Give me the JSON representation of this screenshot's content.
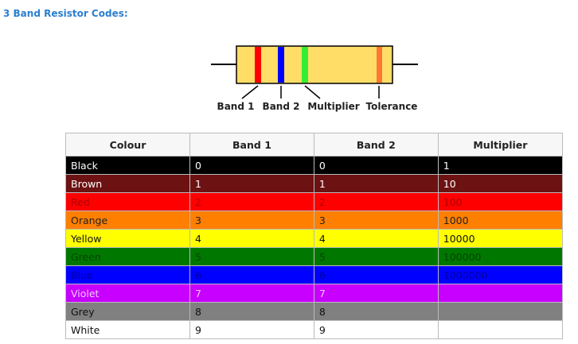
{
  "title": "3 Band Resistor Codes:",
  "diagram": {
    "labels": [
      "Band 1",
      "Band 2",
      "Multiplier",
      "Tolerance"
    ]
  },
  "table": {
    "headers": [
      "Colour",
      "Band 1",
      "Band 2",
      "Multiplier"
    ],
    "rows": [
      [
        "Black",
        "0",
        "0",
        "1"
      ],
      [
        "Brown",
        "1",
        "1",
        "10"
      ],
      [
        "Red",
        "2",
        "2",
        "100"
      ],
      [
        "Orange",
        "3",
        "3",
        "1000"
      ],
      [
        "Yellow",
        "4",
        "4",
        "10000"
      ],
      [
        "Green",
        "5",
        "5",
        "100000"
      ],
      [
        "Blue",
        "6",
        "6",
        "1000000"
      ],
      [
        "Violet",
        "7",
        "7"
      ],
      [
        "Grey",
        "8",
        "8"
      ],
      [
        "White",
        "9",
        "9"
      ]
    ]
  }
}
